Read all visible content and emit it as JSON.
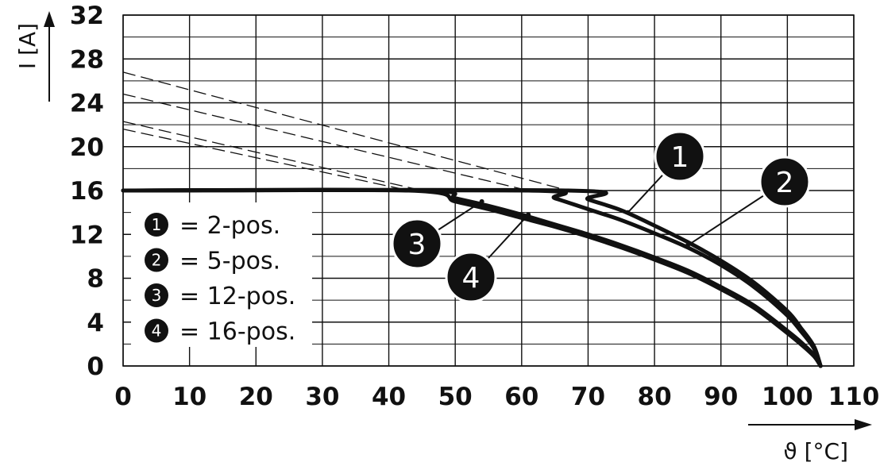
{
  "chart_data": {
    "type": "line",
    "xlabel": "ϑ [°C]",
    "ylabel": "I [A]",
    "xlim": [
      0,
      110
    ],
    "ylim": [
      0,
      32
    ],
    "x_ticks": [
      "0",
      "10",
      "20",
      "30",
      "40",
      "50",
      "60",
      "70",
      "80",
      "90",
      "100",
      "110"
    ],
    "y_ticks": [
      "0",
      "4",
      "8",
      "12",
      "16",
      "20",
      "24",
      "28",
      "32"
    ],
    "grid": true,
    "legend_placement": "left",
    "legend": [
      {
        "badge": "1",
        "label": "= 2-pos."
      },
      {
        "badge": "2",
        "label": "= 5-pos."
      },
      {
        "badge": "3",
        "label": "= 12-pos."
      },
      {
        "badge": "4",
        "label": "= 16-pos."
      }
    ],
    "series": [
      {
        "id": "1",
        "x": [
          0,
          67,
          70,
          75,
          80,
          85,
          90,
          95,
          100,
          102,
          104,
          105
        ],
        "y": [
          16,
          16,
          15.2,
          14.2,
          12.8,
          11.3,
          9.6,
          7.6,
          5.0,
          3.5,
          1.8,
          0
        ]
      },
      {
        "id": "2",
        "x": [
          0,
          61,
          65,
          70,
          75,
          80,
          85,
          90,
          95,
          100,
          102,
          104,
          105
        ],
        "y": [
          16,
          16,
          15.3,
          14.3,
          13.3,
          12.1,
          10.8,
          9.2,
          7.2,
          4.6,
          3.2,
          1.6,
          0
        ]
      },
      {
        "id": "3",
        "x": [
          0,
          45,
          50,
          55,
          60,
          65,
          70,
          75,
          80,
          85,
          90,
          95,
          100,
          102,
          104,
          105
        ],
        "y": [
          16,
          16,
          15.3,
          14.6,
          13.8,
          12.9,
          12.0,
          11.0,
          9.9,
          8.7,
          7.2,
          5.5,
          3.2,
          2.2,
          1.0,
          0
        ]
      },
      {
        "id": "4",
        "x": [
          0,
          43,
          50,
          55,
          60,
          65,
          70,
          75,
          80,
          85,
          90,
          95,
          100,
          102,
          104,
          105
        ],
        "y": [
          16,
          16,
          15.0,
          14.3,
          13.5,
          12.7,
          11.8,
          10.8,
          9.7,
          8.5,
          7.0,
          5.3,
          3.0,
          2.0,
          0.9,
          0
        ]
      }
    ],
    "extrapolation_lines": [
      {
        "x": [
          0,
          67
        ],
        "y": [
          26.8,
          16
        ]
      },
      {
        "x": [
          0,
          61
        ],
        "y": [
          24.8,
          16
        ]
      },
      {
        "x": [
          0,
          45
        ],
        "y": [
          22.3,
          16
        ]
      },
      {
        "x": [
          0,
          43
        ],
        "y": [
          21.6,
          16
        ]
      }
    ],
    "callouts": [
      {
        "badge": "1",
        "x": 76,
        "y": 14.0
      },
      {
        "badge": "2",
        "x": 85,
        "y": 11.0
      },
      {
        "badge": "3",
        "x": 54,
        "y": 15.0
      },
      {
        "badge": "4",
        "x": 61,
        "y": 13.8
      }
    ]
  }
}
